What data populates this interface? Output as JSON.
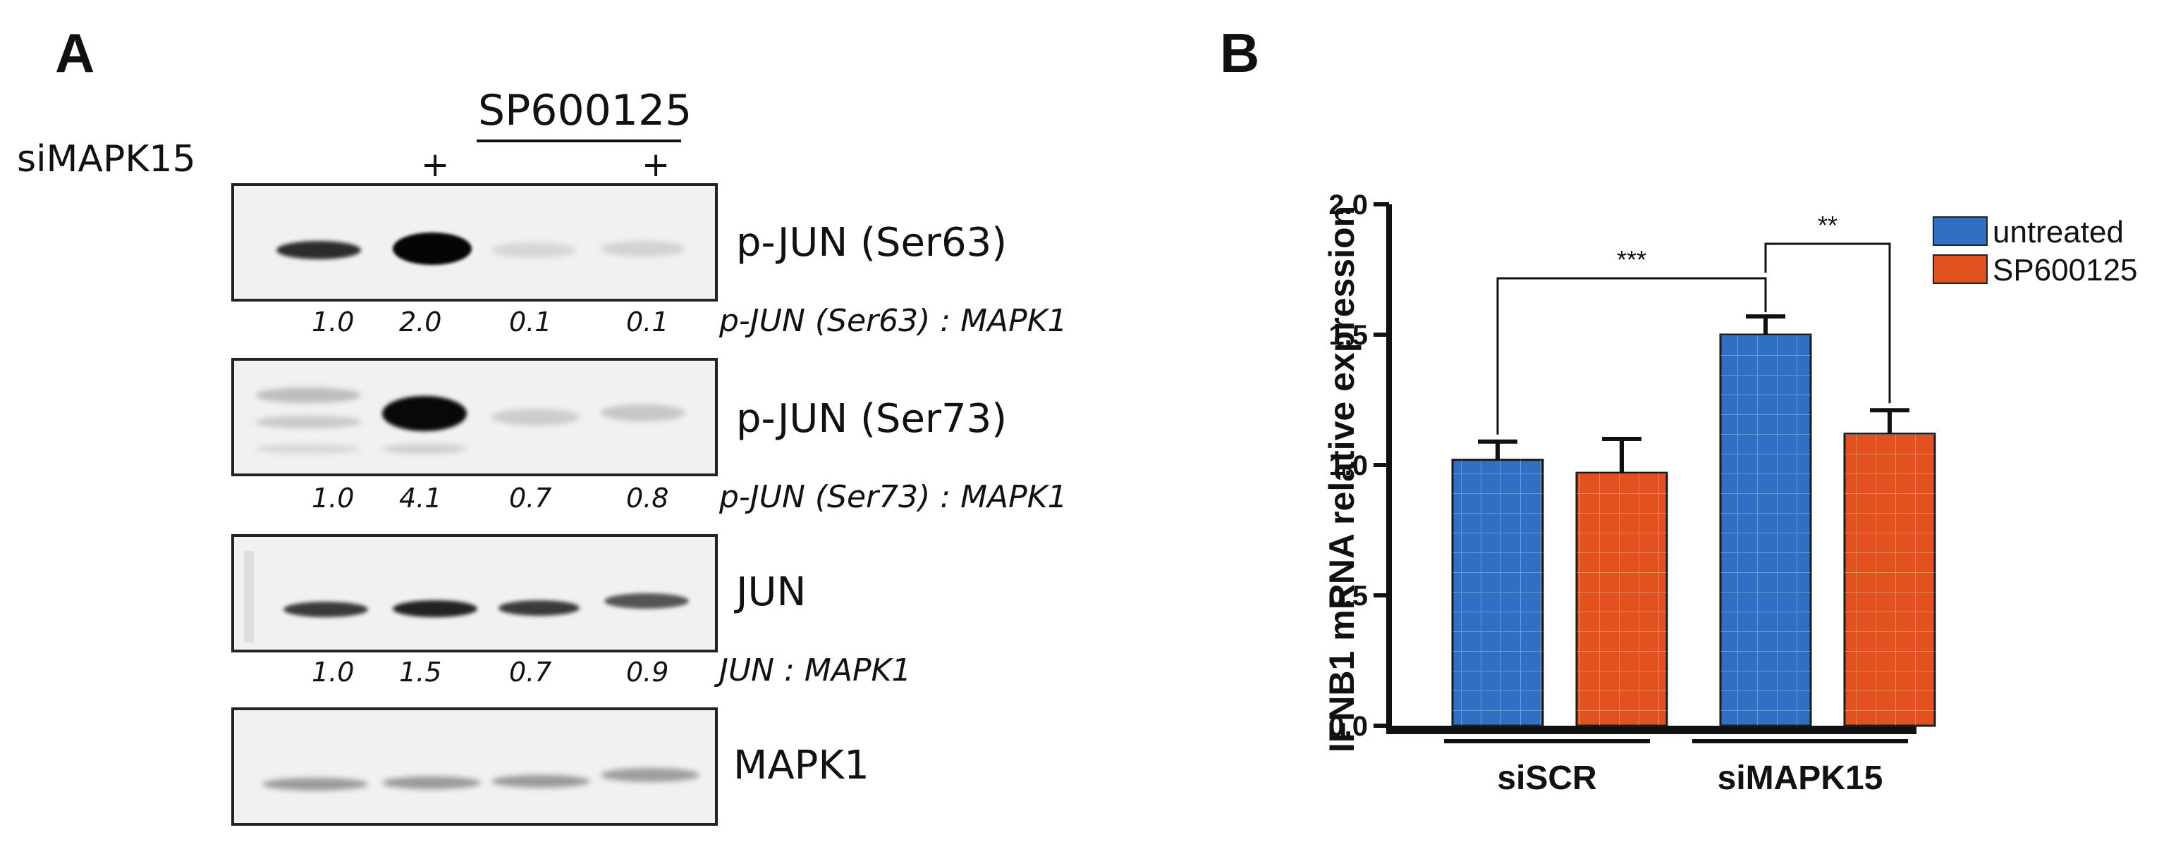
{
  "panel_a": {
    "letter": "A",
    "treatment_group_label": "SP600125",
    "row_label": "siMAPK15",
    "lane_marks": [
      "",
      "+",
      "",
      "+"
    ],
    "blots": [
      {
        "label": "p-JUN (Ser63)",
        "ratio_label": "p-JUN (Ser63) : MAPK1",
        "ratios": [
          "1.0",
          "2.0",
          "0.1",
          "0.1"
        ]
      },
      {
        "label": "p-JUN (Ser73)",
        "ratio_label": "p-JUN (Ser73) : MAPK1",
        "ratios": [
          "1.0",
          "4.1",
          "0.7",
          "0.8"
        ]
      },
      {
        "label": "JUN",
        "ratio_label": "JUN : MAPK1",
        "ratios": [
          "1.0",
          "1.5",
          "0.7",
          "0.9"
        ]
      },
      {
        "label": "MAPK1",
        "ratio_label": "",
        "ratios": []
      }
    ]
  },
  "panel_b": {
    "letter": "B",
    "chart_data": {
      "type": "bar",
      "title": "",
      "ylabel": "IFNB1 mRNA relative expression",
      "xlabel": "",
      "ylim": [
        0,
        2.0
      ],
      "yticks": [
        "0.0",
        "0.5",
        "1.0",
        "1.5",
        "2.0"
      ],
      "groups": [
        "siSCR",
        "siMAPK15"
      ],
      "series": [
        {
          "name": "untreated",
          "color": "#2f6fc4",
          "values": [
            1.02,
            1.5
          ],
          "errors": [
            0.07,
            0.07
          ]
        },
        {
          "name": "SP600125",
          "color": "#e2521f",
          "values": [
            0.97,
            1.12
          ],
          "errors": [
            0.13,
            0.09
          ]
        }
      ],
      "significance": [
        {
          "label": "***",
          "between": "siSCR untreated vs siMAPK15 untreated"
        },
        {
          "label": "**",
          "between": "siMAPK15 untreated vs siMAPK15 SP600125"
        }
      ]
    }
  }
}
